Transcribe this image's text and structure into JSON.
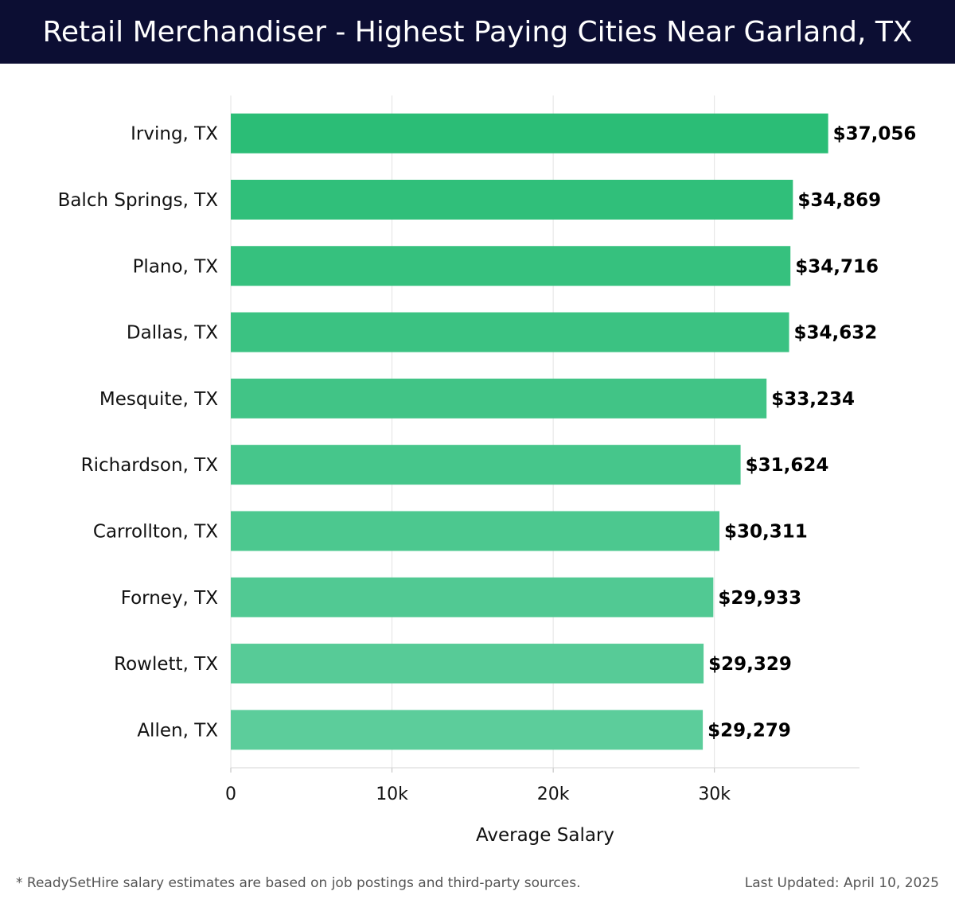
{
  "title": "Retail Merchandiser - Highest Paying Cities Near Garland, TX",
  "footer": {
    "note": "* ReadySetHire salary estimates are based on job postings and third-party sources.",
    "updated": "Last Updated: April 10, 2025"
  },
  "colors": {
    "header_bg": "#0c0e33",
    "bar_top": "#2bbd76",
    "bar_bottom": "#5ccd9b"
  },
  "chart_data": {
    "type": "bar",
    "orientation": "horizontal",
    "categories": [
      "Irving, TX",
      "Balch Springs, TX",
      "Plano, TX",
      "Dallas, TX",
      "Mesquite, TX",
      "Richardson, TX",
      "Carrollton, TX",
      "Forney, TX",
      "Rowlett, TX",
      "Allen, TX"
    ],
    "values": [
      37056,
      34869,
      34716,
      34632,
      33234,
      31624,
      30311,
      29933,
      29329,
      29279
    ],
    "value_labels": [
      "$37,056",
      "$34,869",
      "$34,716",
      "$34,632",
      "$33,234",
      "$31,624",
      "$30,311",
      "$29,933",
      "$29,329",
      "$29,279"
    ],
    "xlabel": "Average Salary",
    "ylabel": "",
    "xticks": [
      0,
      10000,
      20000,
      30000
    ],
    "xtick_labels": [
      "0",
      "10k",
      "20k",
      "30k"
    ],
    "xlim": [
      0,
      39000
    ],
    "grid": true,
    "legend": "none"
  }
}
